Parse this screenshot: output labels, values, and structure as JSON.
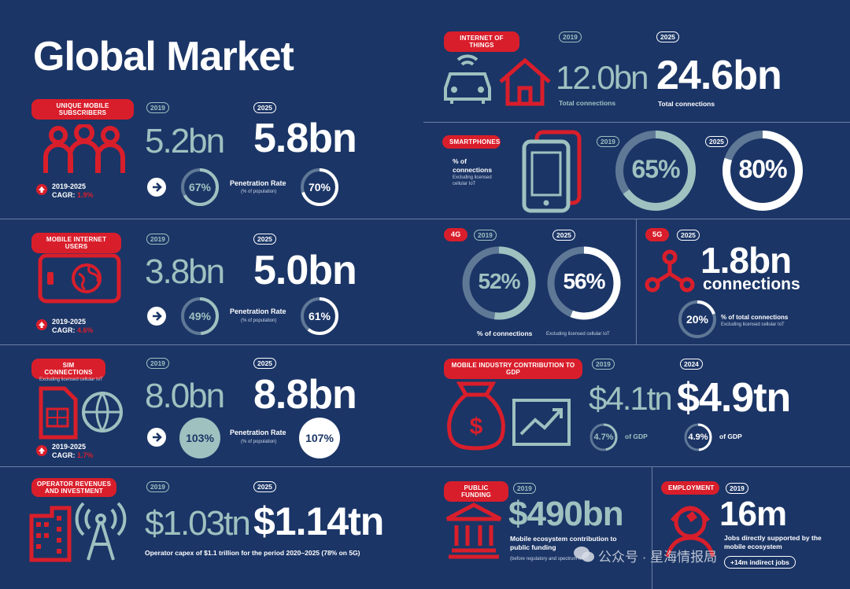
{
  "title": "Global Market",
  "subscribers": {
    "tag": "Unique mobile subscribers",
    "y1": "2019",
    "y2": "2025",
    "v1": "5.2bn",
    "v2": "5.8bn",
    "cagr_years": "2019-2025",
    "cagr_label": "CAGR:",
    "cagr_value": "1.9%",
    "pen_label": "Penetration Rate",
    "pen_sub": "(% of population)",
    "pen1": "67%",
    "pen2": "70%",
    "pen1_value": 67,
    "pen2_value": 70
  },
  "internet": {
    "tag": "Mobile internet users",
    "y1": "2019",
    "y2": "2025",
    "v1": "3.8bn",
    "v2": "5.0bn",
    "cagr_years": "2019-2025",
    "cagr_label": "CAGR:",
    "cagr_value": "4.6%",
    "pen_label": "Penetration Rate",
    "pen_sub": "(% of population)",
    "pen1": "49%",
    "pen2": "61%",
    "pen1_value": 49,
    "pen2_value": 61
  },
  "sim": {
    "tag": "SIM connections",
    "note": "Excluding licensed cellular IoT",
    "y1": "2019",
    "y2": "2025",
    "v1": "8.0bn",
    "v2": "8.8bn",
    "cagr_years": "2019-2025",
    "cagr_label": "CAGR:",
    "cagr_value": "1.7%",
    "pen_label": "Penetration Rate",
    "pen_sub": "(% of population)",
    "pen1": "103%",
    "pen2": "107%"
  },
  "operator": {
    "tag": "Operator revenues and investment",
    "y1": "2019",
    "y2": "2025",
    "v1": "$1.03tn",
    "v2": "$1.14tn",
    "note": "Operator capex of $1.1 trillion for the period 2020–2025 (78% on 5G)"
  },
  "iot": {
    "tag": "Internet of things",
    "y1": "2019",
    "y2": "2025",
    "v1": "12.0bn",
    "v2": "24.6bn",
    "l1": "Total connections",
    "l2": "Total connections"
  },
  "smartphones": {
    "tag": "Smartphones",
    "label": "% of connections",
    "sub": "Excluding licensed cellular IoT",
    "y1": "2019",
    "y2": "2025",
    "p1": "65%",
    "p2": "80%",
    "p1_value": 65,
    "p2_value": 80
  },
  "fourg": {
    "tag": "4G",
    "y1": "2019",
    "y2": "2025",
    "p1": "52%",
    "p2": "56%",
    "p1_value": 52,
    "p2_value": 56,
    "label": "% of connections",
    "sub": "Excluding licensed cellular IoT"
  },
  "fiveg": {
    "tag": "5G",
    "y": "2025",
    "value": "1.8bn",
    "value_label": "connections",
    "pct": "20%",
    "pct_value": 20,
    "pct_label": "% of total connections",
    "pct_sub": "Excluding licensed cellular IoT"
  },
  "gdp": {
    "tag": "Mobile industry contribution to GDP",
    "y1": "2019",
    "y2": "2024",
    "v1": "$4.1tn",
    "v2": "$4.9tn",
    "p1": "4.7%",
    "p2": "4.9%",
    "p_label": "of GDP",
    "p1_value": 4.7,
    "p2_value": 4.9
  },
  "funding": {
    "tag": "Public funding",
    "y": "2019",
    "value": "$490bn",
    "label": "Mobile ecosystem contribution to public funding",
    "sub": "(before regulatory and spectrum fees)"
  },
  "employment": {
    "tag": "Employment",
    "y": "2019",
    "value": "16m",
    "label": "Jobs directly supported by the mobile ecosystem",
    "extra": "+14m indirect jobs"
  },
  "watermark": "公众号 · 星海情报局",
  "colors": {
    "bg": "#1b3566",
    "accent": "#d91e2b",
    "teal": "#9fc1c0"
  }
}
